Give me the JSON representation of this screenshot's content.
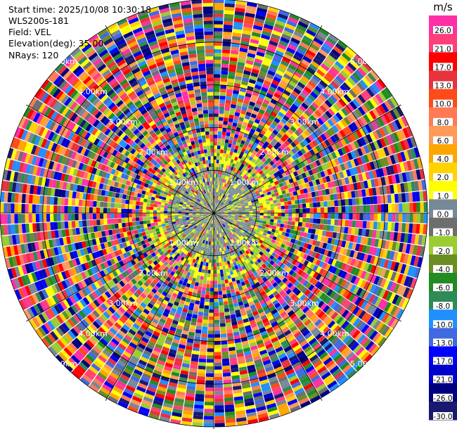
{
  "header": {
    "start_time": "Start time: 2025/10/08 10:30:18",
    "instrument": "WLS200s-181",
    "field": "Field: VEL",
    "elevation": "Elevation(deg): 35.00",
    "nrays": "NRays: 120"
  },
  "chart_data": {
    "type": "heatmap",
    "projection": "polar-ppi",
    "n_rays": 120,
    "range_rings_km": [
      1,
      2,
      3,
      4,
      5
    ],
    "ring_labels": [
      "1.00km",
      "2.00km",
      "3.00km",
      "4.00km",
      "5.00km"
    ],
    "max_range_km": 5.0,
    "spokes_deg": 30,
    "grid": true,
    "colorbar": {
      "unit": "m/s",
      "ticks": [
        "26.0",
        "21.0",
        "17.0",
        "13.0",
        "10.0",
        "8.0",
        "6.0",
        "4.0",
        "2.0",
        "1.0",
        "0.0",
        "-1.0",
        "-2.0",
        "-4.0",
        "-6.0",
        "-8.0",
        "-10.0",
        "-13.0",
        "-17.0",
        "-21.0",
        "-26.0",
        "-30.0"
      ],
      "colors": [
        "#ff2fa5",
        "#ff3f7a",
        "#ff0000",
        "#e8323c",
        "#ff4a1a",
        "#ff7a55",
        "#ff9a5a",
        "#ffa500",
        "#ffd200",
        "#ffff00",
        "#778899",
        "#6e6e6e",
        "#9acd32",
        "#6b8e23",
        "#228b22",
        "#2e8b57",
        "#1e90ff",
        "#4169e1",
        "#0000ff",
        "#0000cd",
        "#000080",
        "#191970"
      ]
    }
  }
}
